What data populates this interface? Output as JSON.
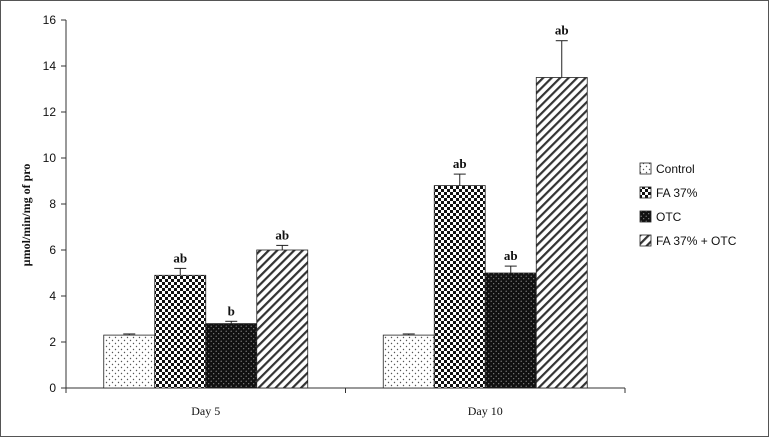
{
  "chart_data": {
    "type": "bar",
    "title": "",
    "xlabel": "",
    "ylabel": "µmol/min/mg of pro",
    "ylim": [
      0,
      16
    ],
    "yticks": [
      0,
      2,
      4,
      6,
      8,
      10,
      12,
      14,
      16
    ],
    "grid": false,
    "legend_position": "right",
    "categories": [
      "Day 5",
      "Day 10"
    ],
    "series": [
      {
        "name": "Control",
        "pattern": "dots-light",
        "values": [
          2.3,
          2.3
        ],
        "errors": [
          0.05,
          0.05
        ],
        "labels": [
          "",
          ""
        ]
      },
      {
        "name": "FA 37%",
        "pattern": "checker",
        "values": [
          4.9,
          8.8
        ],
        "errors": [
          0.3,
          0.5
        ],
        "labels": [
          "ab",
          "ab"
        ]
      },
      {
        "name": "OTC",
        "pattern": "dots-dark",
        "values": [
          2.8,
          5.0
        ],
        "errors": [
          0.1,
          0.3
        ],
        "labels": [
          "b",
          "ab"
        ]
      },
      {
        "name": "FA 37% + OTC",
        "pattern": "diagonal",
        "values": [
          6.0,
          13.5
        ],
        "errors": [
          0.2,
          1.6
        ],
        "labels": [
          "ab",
          "ab"
        ]
      }
    ]
  }
}
